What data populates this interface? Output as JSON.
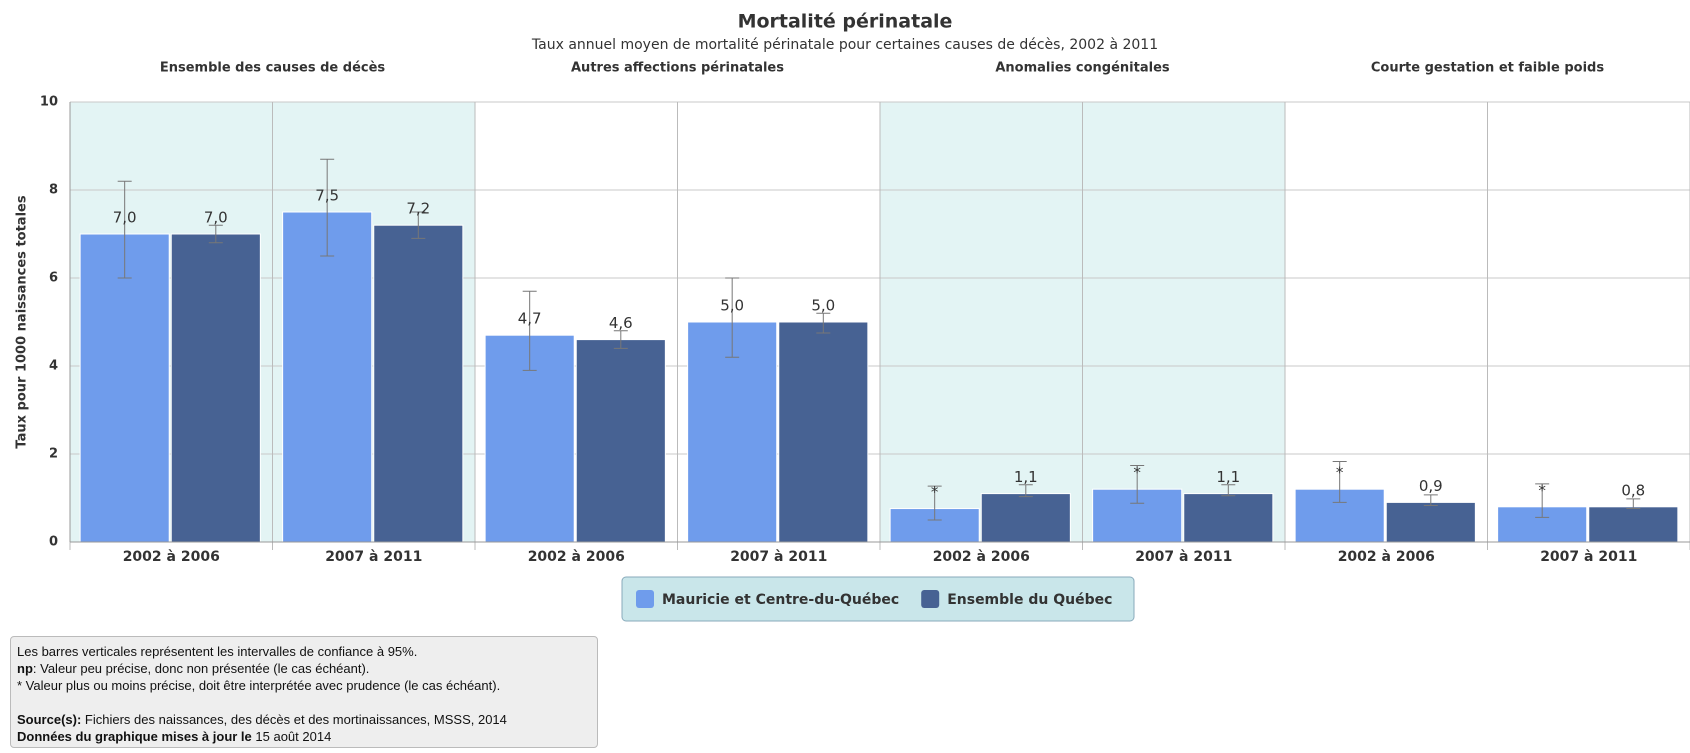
{
  "chart_data": {
    "type": "bar",
    "title": "Mortalité périnatale",
    "subtitle": "Taux annuel moyen de mortalité périnatale pour certaines causes de décès, 2002 à 2011",
    "y_label": "Taux pour 1000 naissances totales",
    "groups": [
      "Ensemble des causes de décès",
      "Autres affections périnatales",
      "Anomalies congénitales",
      "Courte gestation et faible poids"
    ],
    "shaded_groups": [
      true,
      false,
      true,
      false
    ],
    "categories": [
      "2002 à 2006",
      "2007 à 2011",
      "2002 à 2006",
      "2007 à 2011",
      "2002 à 2006",
      "2007 à 2011",
      "2002 à 2006",
      "2007 à 2011"
    ],
    "series": [
      {
        "name": "Mauricie et Centre-du-Québec",
        "color": "#6f9cec",
        "values": [
          7.0,
          7.5,
          4.7,
          5.0,
          0.76,
          1.2,
          1.2,
          0.8
        ],
        "value_labels": [
          "7,0",
          "7,5",
          "4,7",
          "5,0",
          "*",
          "*",
          "*",
          "*"
        ],
        "ci_low": [
          6.0,
          6.5,
          3.9,
          4.2,
          0.5,
          0.88,
          0.9,
          0.56
        ],
        "ci_high": [
          8.2,
          8.7,
          5.7,
          6.0,
          1.27,
          1.74,
          1.83,
          1.32
        ]
      },
      {
        "name": "Ensemble du Québec",
        "color": "#476293",
        "values": [
          7.0,
          7.2,
          4.6,
          5.0,
          1.1,
          1.1,
          0.9,
          0.8
        ],
        "value_labels": [
          "7,0",
          "7,2",
          "4,6",
          "5,0",
          "1,1",
          "1,1",
          "0,9",
          "0,8"
        ],
        "ci_low": [
          6.8,
          6.9,
          4.4,
          4.75,
          1.03,
          1.05,
          0.83,
          0.76
        ],
        "ci_high": [
          7.2,
          7.5,
          4.8,
          5.2,
          1.3,
          1.3,
          1.07,
          0.98
        ]
      }
    ],
    "ylim": [
      0,
      10
    ],
    "yticks": [
      0,
      2,
      4,
      6,
      8,
      10
    ],
    "grid": true,
    "legend_position": "bottom"
  },
  "footnote": {
    "line1": "Les barres verticales représentent les intervalles de confiance à 95%.",
    "line2": {
      "bold": "np",
      "text": ": Valeur peu précise, donc non présentée (le cas échéant)."
    },
    "line3": "* Valeur plus ou moins précise, doit être interprétée avec prudence (le cas échéant).",
    "source": {
      "bold": "Source(s):",
      "text": " Fichiers des naissances, des décès et des mortinaissances, MSSS, 2014"
    },
    "updated": {
      "bold": "Données du graphique mises à jour le",
      "text": " 15 août 2014"
    }
  }
}
